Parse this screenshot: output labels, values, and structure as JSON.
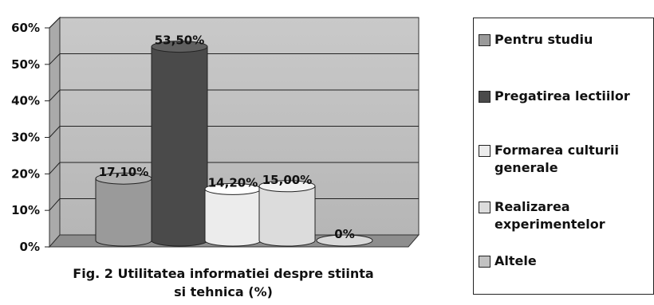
{
  "chart_data": {
    "type": "bar",
    "categories": [
      "Pentru studiu",
      "Pregatirea lectiilor",
      "Formarea culturii generale",
      "Realizarea experimentelor",
      "Altele"
    ],
    "values": [
      17.1,
      53.5,
      14.2,
      15.0,
      0
    ],
    "data_labels": [
      "17,10%",
      "53,50%",
      "14,20%",
      "15,00%",
      "0%"
    ],
    "colors": [
      "#9a9a9a",
      "#4a4a4a",
      "#ececec",
      "#dcdcdc",
      "#c2c2c2"
    ],
    "ylim": [
      0,
      60
    ],
    "yticks": [
      0,
      10,
      20,
      30,
      40,
      50,
      60
    ],
    "ytick_labels": [
      "0%",
      "10%",
      "20%",
      "30%",
      "40%",
      "50%",
      "60%"
    ],
    "grid": true,
    "legend_position": "right",
    "style": "3d-cylinder",
    "caption": [
      "Fig. 2 Utilitatea informatiei despre stiinta",
      "si tehnica (%)"
    ]
  },
  "legend": {
    "items": [
      {
        "label": "Pentru studiu",
        "color": "#9a9a9a"
      },
      {
        "label": "Pregatirea lectiilor",
        "color": "#4a4a4a"
      },
      {
        "label": "Formarea culturii generale",
        "color": "#ececec"
      },
      {
        "label": "Realizarea experimentelor",
        "color": "#dcdcdc"
      },
      {
        "label": "Altele",
        "color": "#c2c2c2"
      }
    ]
  }
}
